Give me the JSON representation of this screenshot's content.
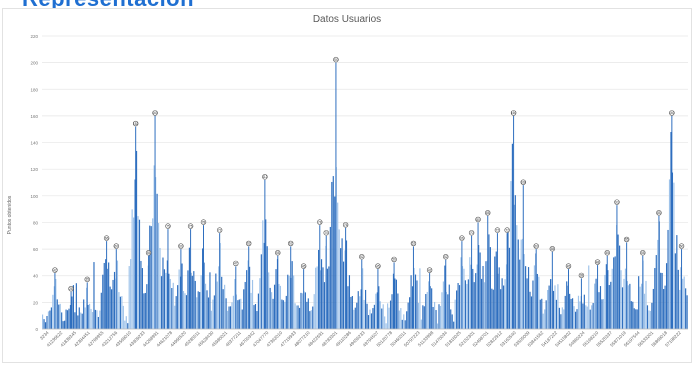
{
  "page": {
    "header_fragment": "Representación"
  },
  "chart_data": {
    "type": "bar",
    "title": "Datos Usuarios",
    "xlabel": "",
    "ylabel": "Puntos obtenidos",
    "ylim": [
      0,
      220
    ],
    "yticks": [
      0,
      20,
      40,
      60,
      80,
      100,
      120,
      140,
      160,
      180,
      200,
      220
    ],
    "grid": true,
    "legend": "none",
    "color": "#2f6fbf",
    "x_tick_labels": [
      "3234",
      "41236622",
      "41839345",
      "42394451",
      "42769955",
      "43212756",
      "43569010",
      "43909233",
      "44268991",
      "44621078",
      "44966520",
      "45285511",
      "45628430",
      "45980021",
      "46377211",
      "46700342",
      "47047770",
      "47392010",
      "47719933",
      "48077210",
      "48422691",
      "48783301",
      "49110286",
      "49456233",
      "49794507",
      "50120778",
      "50460311",
      "50797223",
      "51133998",
      "51470034",
      "51816025",
      "52152301",
      "52498701",
      "52822912",
      "53163540",
      "53505009",
      "53841562",
      "54187222",
      "54515802",
      "54860224",
      "55198210",
      "55525337",
      "55871019",
      "56197544",
      "56533201",
      "56869018",
      "57198222"
    ],
    "peaks": [
      {
        "x": 0.02,
        "value": 42
      },
      {
        "x": 0.045,
        "value": 28
      },
      {
        "x": 0.07,
        "value": 35
      },
      {
        "x": 0.1,
        "value": 66
      },
      {
        "x": 0.115,
        "value": 60
      },
      {
        "x": 0.145,
        "value": 152
      },
      {
        "x": 0.165,
        "value": 55
      },
      {
        "x": 0.175,
        "value": 160
      },
      {
        "x": 0.195,
        "value": 75
      },
      {
        "x": 0.215,
        "value": 60
      },
      {
        "x": 0.23,
        "value": 75
      },
      {
        "x": 0.25,
        "value": 78
      },
      {
        "x": 0.275,
        "value": 72
      },
      {
        "x": 0.3,
        "value": 47
      },
      {
        "x": 0.32,
        "value": 62
      },
      {
        "x": 0.345,
        "value": 112
      },
      {
        "x": 0.365,
        "value": 55
      },
      {
        "x": 0.385,
        "value": 62
      },
      {
        "x": 0.405,
        "value": 45
      },
      {
        "x": 0.43,
        "value": 78
      },
      {
        "x": 0.44,
        "value": 70
      },
      {
        "x": 0.455,
        "value": 200
      },
      {
        "x": 0.47,
        "value": 76
      },
      {
        "x": 0.495,
        "value": 52
      },
      {
        "x": 0.52,
        "value": 45
      },
      {
        "x": 0.545,
        "value": 50
      },
      {
        "x": 0.575,
        "value": 62
      },
      {
        "x": 0.6,
        "value": 42
      },
      {
        "x": 0.625,
        "value": 52
      },
      {
        "x": 0.65,
        "value": 66
      },
      {
        "x": 0.665,
        "value": 70
      },
      {
        "x": 0.675,
        "value": 80
      },
      {
        "x": 0.69,
        "value": 85
      },
      {
        "x": 0.705,
        "value": 72
      },
      {
        "x": 0.72,
        "value": 72
      },
      {
        "x": 0.73,
        "value": 160
      },
      {
        "x": 0.745,
        "value": 108
      },
      {
        "x": 0.765,
        "value": 60
      },
      {
        "x": 0.79,
        "value": 58
      },
      {
        "x": 0.815,
        "value": 45
      },
      {
        "x": 0.835,
        "value": 38
      },
      {
        "x": 0.86,
        "value": 48
      },
      {
        "x": 0.875,
        "value": 55
      },
      {
        "x": 0.89,
        "value": 93
      },
      {
        "x": 0.905,
        "value": 65
      },
      {
        "x": 0.93,
        "value": 55
      },
      {
        "x": 0.955,
        "value": 85
      },
      {
        "x": 0.975,
        "value": 160
      },
      {
        "x": 0.99,
        "value": 60
      }
    ]
  }
}
